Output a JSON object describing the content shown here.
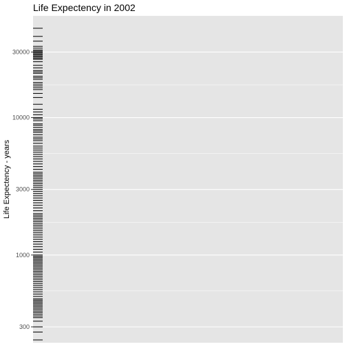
{
  "chart_data": {
    "type": "rug",
    "title": "Life Expectency in 2002",
    "xlabel": "",
    "ylabel": "Life Expectency - years",
    "y_scale": "log10",
    "ylim": [
      230,
      55000
    ],
    "y_ticks": [
      300,
      1000,
      3000,
      10000,
      30000
    ],
    "y_tick_labels": [
      "300",
      "1000",
      "3000",
      "10000",
      "30000"
    ],
    "y_minor_ticks": [
      548,
      1732,
      5477,
      17320
    ],
    "grid": true,
    "legend": "none",
    "colors": {
      "panel_background": "#e5e5e5",
      "grid": "#ffffff",
      "mark": "#000000"
    },
    "values": [
      44683,
      39000,
      36000,
      33000,
      32000,
      31000,
      30500,
      30000,
      29500,
      29000,
      28500,
      28000,
      27500,
      27000,
      26500,
      25500,
      24000,
      23000,
      22000,
      21500,
      21000,
      20000,
      19500,
      19000,
      18000,
      17500,
      17000,
      16500,
      16000,
      15000,
      14000,
      12500,
      11500,
      11000,
      10500,
      10000,
      9800,
      9500,
      9000,
      8800,
      8500,
      8200,
      8000,
      7800,
      7500,
      7200,
      7000,
      6800,
      6500,
      6200,
      6000,
      5800,
      5600,
      5400,
      5200,
      5000,
      4800,
      4600,
      4400,
      4200,
      4000,
      3900,
      3800,
      3700,
      3600,
      3500,
      3400,
      3300,
      3200,
      3100,
      3000,
      2900,
      2800,
      2700,
      2600,
      2500,
      2400,
      2300,
      2200,
      2100,
      2000,
      1950,
      1900,
      1850,
      1800,
      1750,
      1700,
      1650,
      1600,
      1550,
      1500,
      1450,
      1400,
      1350,
      1300,
      1250,
      1200,
      1150,
      1100,
      1050,
      1000,
      980,
      960,
      940,
      920,
      900,
      880,
      860,
      840,
      820,
      800,
      780,
      760,
      740,
      720,
      700,
      680,
      660,
      640,
      620,
      600,
      580,
      560,
      540,
      520,
      500,
      480,
      470,
      460,
      450,
      440,
      430,
      420,
      410,
      400,
      390,
      380,
      370,
      360,
      350,
      330,
      300,
      275,
      241
    ]
  }
}
